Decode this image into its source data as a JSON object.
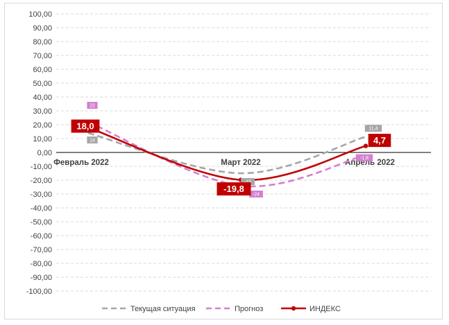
{
  "chart_data": {
    "type": "line",
    "categories": [
      "Февраль 2022",
      "Март 2022",
      "Апрель 2022"
    ],
    "ylim": [
      -100,
      100
    ],
    "ytick_step": 10,
    "grid": true,
    "legend_position": "bottom",
    "series": [
      {
        "name": "Текущая ситуация",
        "values": [
          14,
          -15,
          11.4
        ],
        "labels": [
          "14",
          "-15",
          "11,4"
        ],
        "color": "#a6a6a6",
        "dash": "dashed",
        "label_style": "small"
      },
      {
        "name": "Прогноз",
        "values": [
          22,
          -24,
          -1.8
        ],
        "labels": [
          "22",
          "-24",
          "-1,8"
        ],
        "color": "#d47fd0",
        "dash": "dashed",
        "label_style": "small"
      },
      {
        "name": "ИНДЕКС",
        "values": [
          18.0,
          -19.8,
          4.7
        ],
        "labels": [
          "18,0",
          "-19,8",
          "4,7"
        ],
        "color": "#c00000",
        "dash": "solid",
        "label_style": "big"
      }
    ]
  }
}
